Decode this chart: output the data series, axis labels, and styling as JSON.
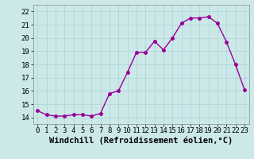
{
  "x": [
    0,
    1,
    2,
    3,
    4,
    5,
    6,
    7,
    8,
    9,
    10,
    11,
    12,
    13,
    14,
    15,
    16,
    17,
    18,
    19,
    20,
    21,
    22,
    23
  ],
  "y": [
    14.5,
    14.2,
    14.1,
    14.1,
    14.2,
    14.2,
    14.1,
    14.3,
    15.8,
    16.0,
    17.4,
    18.9,
    18.9,
    19.75,
    19.1,
    20.0,
    21.1,
    21.5,
    21.5,
    21.6,
    21.1,
    19.7,
    18.0,
    16.1
  ],
  "line_color": "#990099",
  "marker": "o",
  "marker_size": 2.5,
  "bg_color": "#cce8e8",
  "grid_color": "#aad4d4",
  "xlabel": "Windchill (Refroidissement éolien,°C)",
  "xlim": [
    -0.5,
    23.5
  ],
  "ylim": [
    13.5,
    22.5
  ],
  "yticks": [
    14,
    15,
    16,
    17,
    18,
    19,
    20,
    21,
    22
  ],
  "xticks": [
    0,
    1,
    2,
    3,
    4,
    5,
    6,
    7,
    8,
    9,
    10,
    11,
    12,
    13,
    14,
    15,
    16,
    17,
    18,
    19,
    20,
    21,
    22,
    23
  ],
  "tick_label_size": 6.5,
  "xlabel_size": 7.5,
  "line_width": 1.0
}
